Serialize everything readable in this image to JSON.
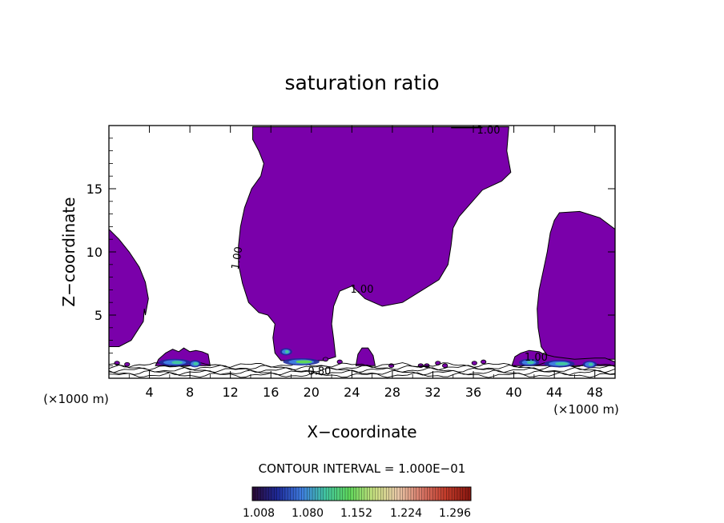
{
  "chart_data": {
    "type": "contour",
    "title": "saturation ratio",
    "xlabel": "X−coordinate",
    "ylabel": "Z−coordinate",
    "x_unit_label": "(×1000 m)",
    "y_unit_label": "(×1000 m)",
    "xlim": [
      0,
      50
    ],
    "ylim": [
      0,
      20
    ],
    "x_ticks": [
      4,
      8,
      12,
      16,
      20,
      24,
      28,
      32,
      36,
      40,
      44,
      48
    ],
    "y_ticks": [
      5,
      10,
      15
    ],
    "contour_interval_label": "CONTOUR INTERVAL = 1.000E−01",
    "contour_labels": [
      {
        "text": "1.00",
        "x": 37.5,
        "z": 19.6
      },
      {
        "text": "1.00",
        "x": 12.7,
        "z": 9.5
      },
      {
        "text": "1.00",
        "x": 25.0,
        "z": 7.0
      },
      {
        "text": "1.00",
        "x": 42.2,
        "z": 1.6
      },
      {
        "text": "0.80",
        "x": 20.8,
        "z": 0.5
      }
    ],
    "colorbar": {
      "ticks": [
        "1.008",
        "1.080",
        "1.152",
        "1.224",
        "1.296"
      ],
      "colors": [
        "#2a0a38",
        "#1e2a9a",
        "#3f7de0",
        "#42c6a0",
        "#5fd65a",
        "#c8e080",
        "#e8c8a8",
        "#d87868",
        "#c23b2a",
        "#8a1810"
      ]
    },
    "fill_color": "#7a00aa",
    "regions": [
      {
        "name": "upper-central",
        "polygon": [
          [
            14.2,
            19.9
          ],
          [
            39.5,
            19.9
          ],
          [
            39.3,
            18
          ],
          [
            39.7,
            16.3
          ],
          [
            38.8,
            15.6
          ],
          [
            36.9,
            14.9
          ],
          [
            35.8,
            13.9
          ],
          [
            34.6,
            12.8
          ],
          [
            34.0,
            11.9
          ],
          [
            33.8,
            10.5
          ],
          [
            33.5,
            9.0
          ],
          [
            32.6,
            7.8
          ],
          [
            31.0,
            7.0
          ],
          [
            29.0,
            6.0
          ],
          [
            27.0,
            5.7
          ],
          [
            25.3,
            6.3
          ],
          [
            24.0,
            7.3
          ],
          [
            22.8,
            6.9
          ],
          [
            22.2,
            5.7
          ],
          [
            22.0,
            4.3
          ],
          [
            22.2,
            3.1
          ],
          [
            22.4,
            1.7
          ],
          [
            21.2,
            1.4
          ],
          [
            19.0,
            1.4
          ],
          [
            17.0,
            1.4
          ],
          [
            16.4,
            2.0
          ],
          [
            16.2,
            3.2
          ],
          [
            16.4,
            4.3
          ],
          [
            15.7,
            5.0
          ],
          [
            14.8,
            5.2
          ],
          [
            13.8,
            6.0
          ],
          [
            13.2,
            7.5
          ],
          [
            12.8,
            9.0
          ],
          [
            12.8,
            10.5
          ],
          [
            13.0,
            12.0
          ],
          [
            13.4,
            13.5
          ],
          [
            14.1,
            15.0
          ],
          [
            15.0,
            16.0
          ],
          [
            15.3,
            17.0
          ],
          [
            14.8,
            18.0
          ],
          [
            14.2,
            18.9
          ]
        ]
      },
      {
        "name": "left-lobe",
        "polygon": [
          [
            0,
            11.8
          ],
          [
            1.0,
            11.0
          ],
          [
            2.0,
            10.0
          ],
          [
            3.0,
            8.8
          ],
          [
            3.6,
            7.6
          ],
          [
            3.9,
            6.3
          ],
          [
            3.6,
            5.0
          ],
          [
            3.5,
            5.5
          ],
          [
            3.4,
            4.5
          ],
          [
            2.2,
            3.0
          ],
          [
            1.0,
            2.5
          ],
          [
            0,
            2.5
          ]
        ]
      },
      {
        "name": "right-lobe",
        "polygon": [
          [
            44.5,
            13.1
          ],
          [
            46.5,
            13.2
          ],
          [
            48.5,
            12.7
          ],
          [
            50,
            11.8
          ],
          [
            50,
            1.5
          ],
          [
            48.0,
            1.5
          ],
          [
            46.0,
            1.3
          ],
          [
            44.5,
            1.4
          ],
          [
            43.5,
            1.6
          ],
          [
            42.7,
            2.5
          ],
          [
            42.4,
            4.0
          ],
          [
            42.3,
            5.5
          ],
          [
            42.5,
            7.0
          ],
          [
            42.9,
            8.5
          ],
          [
            43.3,
            10.0
          ],
          [
            43.6,
            11.5
          ],
          [
            44.0,
            12.5
          ]
        ]
      },
      {
        "name": "blob-left-low",
        "polygon": [
          [
            4.6,
            1.0
          ],
          [
            10.0,
            1.0
          ],
          [
            9.8,
            1.9
          ],
          [
            9.2,
            2.1
          ],
          [
            8.6,
            2.2
          ],
          [
            8.0,
            2.1
          ],
          [
            7.4,
            2.4
          ],
          [
            6.9,
            2.1
          ],
          [
            6.3,
            2.3
          ],
          [
            5.6,
            2.0
          ],
          [
            4.9,
            1.5
          ]
        ]
      },
      {
        "name": "blob-25",
        "polygon": [
          [
            24.4,
            1.0
          ],
          [
            26.3,
            1.0
          ],
          [
            26.1,
            1.8
          ],
          [
            25.6,
            2.4
          ],
          [
            25.0,
            2.4
          ],
          [
            24.6,
            1.9
          ]
        ]
      },
      {
        "name": "blob-right-low",
        "polygon": [
          [
            39.8,
            1.0
          ],
          [
            50,
            1.0
          ],
          [
            50,
            1.3
          ],
          [
            49.0,
            1.6
          ],
          [
            48.0,
            1.6
          ],
          [
            46.0,
            1.5
          ],
          [
            44.0,
            1.7
          ],
          [
            43.0,
            1.9
          ],
          [
            42.5,
            2.1
          ],
          [
            41.5,
            2.2
          ],
          [
            40.7,
            2.0
          ],
          [
            40.1,
            1.7
          ]
        ]
      },
      {
        "name": "specks",
        "points": [
          [
            0.8,
            1.2
          ],
          [
            1.8,
            1.1
          ],
          [
            21.4,
            1.5
          ],
          [
            22.8,
            1.3
          ],
          [
            27.9,
            1.0
          ],
          [
            30.8,
            1.0
          ],
          [
            31.4,
            1.0
          ],
          [
            32.5,
            1.2
          ],
          [
            33.2,
            1.0
          ],
          [
            36.1,
            1.2
          ],
          [
            37.0,
            1.3
          ]
        ]
      }
    ],
    "hot_spots": [
      {
        "x": 6.5,
        "z": 1.25,
        "w": 3.2,
        "level": 0.25
      },
      {
        "x": 8.5,
        "z": 1.15,
        "w": 1.2,
        "level": 0.45
      },
      {
        "x": 19.0,
        "z": 1.3,
        "w": 3.6,
        "level": 0.5
      },
      {
        "x": 17.5,
        "z": 2.1,
        "w": 1.2,
        "level": 0.2
      },
      {
        "x": 41.5,
        "z": 1.25,
        "w": 2.0,
        "level": 0.3
      },
      {
        "x": 44.5,
        "z": 1.15,
        "w": 3.0,
        "level": 0.45
      },
      {
        "x": 47.5,
        "z": 1.1,
        "w": 1.4,
        "level": 0.2
      }
    ]
  }
}
